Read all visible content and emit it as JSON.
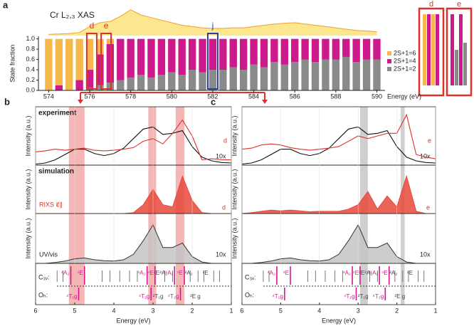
{
  "chart_data": [
    {
      "type": "area",
      "panel_label": "a",
      "title": "Cr L₂,₃ XAS",
      "color": "#fbe27a",
      "line_color": "#f0a030",
      "x": [
        574,
        574.5,
        575,
        575.5,
        576,
        576.5,
        577,
        577.5,
        578,
        578.5,
        579,
        579.5,
        580,
        580.5,
        581,
        581.5,
        582,
        582.5,
        583,
        583.5,
        584,
        584.5,
        585,
        585.5,
        586,
        586.5,
        587,
        587.5,
        588,
        588.5,
        589,
        589.5,
        590
      ],
      "values": [
        0.05,
        0.06,
        0.08,
        0.12,
        0.35,
        0.5,
        0.55,
        0.75,
        1.0,
        0.8,
        0.7,
        0.6,
        0.5,
        0.4,
        0.35,
        0.3,
        0.28,
        0.28,
        0.3,
        0.3,
        0.35,
        0.4,
        0.45,
        0.48,
        0.5,
        0.45,
        0.4,
        0.35,
        0.3,
        0.25,
        0.2,
        0.18,
        0.15
      ],
      "xlim": [
        573.5,
        590.4
      ],
      "ylim": [
        0,
        1.05
      ]
    },
    {
      "type": "bar",
      "stacked": true,
      "ylabel": "State fraction",
      "xlabel": "Energy (eV)",
      "x": [
        574,
        574.5,
        575,
        575.5,
        576,
        576.5,
        577,
        577.5,
        578,
        578.5,
        579,
        579.5,
        580,
        580.5,
        581,
        581.5,
        582,
        582.5,
        583,
        583.5,
        584,
        584.5,
        585,
        585.5,
        586,
        586.5,
        587,
        587.5,
        588,
        588.5,
        589,
        589.5,
        590
      ],
      "series": [
        {
          "name": "2S+1=2",
          "color": "#8a8a8a",
          "values": [
            0,
            0,
            0,
            0,
            0.05,
            0.1,
            0.15,
            0.2,
            0.25,
            0.3,
            0.25,
            0.3,
            0.35,
            0.3,
            0.4,
            0.35,
            0.4,
            0.4,
            0.45,
            0.4,
            0.5,
            0.45,
            0.55,
            0.5,
            0.55,
            0.6,
            0.55,
            0.6,
            0.6,
            0.65,
            0.55,
            0.6,
            0.6
          ]
        },
        {
          "name": "2S+1=4",
          "color": "#cc1a8c",
          "values": [
            0,
            0.1,
            0,
            0.2,
            0.35,
            0.6,
            0.75,
            0.8,
            0.75,
            0.7,
            0.75,
            0.7,
            0.65,
            0.7,
            0.6,
            0.65,
            0.6,
            0.6,
            0.55,
            0.6,
            0.5,
            0.55,
            0.45,
            0.5,
            0.45,
            0.4,
            0.45,
            0.4,
            0.4,
            0.35,
            0.45,
            0.4,
            0.4
          ]
        },
        {
          "name": "2S+1=6",
          "color": "#f7b84b",
          "values": [
            1,
            0.9,
            1,
            0.8,
            0.6,
            0.3,
            0.1,
            0,
            0,
            0,
            0,
            0,
            0,
            0,
            0,
            0,
            0,
            0,
            0,
            0,
            0,
            0,
            0,
            0,
            0,
            0,
            0,
            0,
            0,
            0,
            0,
            0,
            0
          ]
        }
      ],
      "xlim": [
        573.5,
        590.4
      ],
      "ylim": [
        0,
        1.05
      ],
      "xticks": [
        574,
        576,
        578,
        580,
        582,
        584,
        586,
        588,
        590
      ],
      "yticks": [
        {
          "value": 0,
          "label": "0.0"
        },
        {
          "value": 0.2,
          "label": "0.2"
        },
        {
          "value": 0.4,
          "label": "0.4"
        },
        {
          "value": 0.6,
          "label": "0.6"
        },
        {
          "value": 0.8,
          "label": "0.8"
        },
        {
          "value": 1.0,
          "label": "1.0"
        }
      ],
      "boxes": [
        {
          "label": "d",
          "x": 576.1,
          "color": "#d9342b"
        },
        {
          "label": "e",
          "x": 576.8,
          "color": "#d9342b"
        },
        {
          "label": "j",
          "x": 582,
          "color": "#2a3f9e"
        }
      ]
    },
    {
      "type": "line",
      "panel_label": "b",
      "label": "experiment",
      "ylabel": "Intensity (a.u.)",
      "note": "10x",
      "x": [
        6,
        5.75,
        5.5,
        5.25,
        5,
        4.75,
        4.5,
        4.25,
        4,
        3.75,
        3.5,
        3.25,
        3,
        2.75,
        2.5,
        2.25,
        2,
        1.75,
        1.5,
        1.25,
        1
      ],
      "series": [
        {
          "color": "#111111",
          "values": [
            0.02,
            0.04,
            0.1,
            0.2,
            0.3,
            0.3,
            0.22,
            0.18,
            0.22,
            0.32,
            0.5,
            0.68,
            0.72,
            0.58,
            0.6,
            0.65,
            0.35,
            0.15,
            0.08,
            0.05,
            0.04
          ]
        },
        {
          "name": "d",
          "color": "#d9342b",
          "values": [
            0.25,
            0.27,
            0.3,
            0.28,
            0.3,
            0.32,
            0.28,
            0.27,
            0.28,
            0.3,
            0.33,
            0.45,
            0.5,
            0.4,
            0.6,
            0.85,
            0.55,
            0.1,
            0.12,
            0.1,
            0.1
          ]
        }
      ],
      "xlim": [
        6,
        1
      ],
      "ylim": [
        0,
        1.1
      ],
      "highlights": [
        [
          5.15,
          4.75
        ],
        [
          3.12,
          2.92
        ],
        [
          2.42,
          2.2
        ]
      ],
      "highlight_color": "#ef8f8f"
    },
    {
      "type": "area",
      "label": "simulation",
      "ylabel": "Intensity (a.u.)",
      "end_label": "d",
      "x": [
        6,
        5.75,
        5.5,
        5.25,
        5,
        4.75,
        4.5,
        4.25,
        4,
        3.75,
        3.5,
        3.25,
        3,
        2.75,
        2.5,
        2.25,
        2,
        1.75,
        1.5,
        1.25,
        1
      ],
      "series": [
        {
          "name": "RIXS ε⃗∥",
          "color": "#e8493b",
          "values": [
            0,
            0,
            0,
            0,
            0,
            0,
            0,
            0,
            0,
            0,
            0.02,
            0.2,
            0.55,
            0.2,
            0.15,
            0.85,
            0.3,
            0.02,
            0,
            0,
            0
          ]
        }
      ],
      "xlim": [
        6,
        1
      ],
      "ylim": [
        0,
        1.1
      ]
    },
    {
      "type": "area",
      "ylabel": "Intensity (a.u.)",
      "note": "10x",
      "x": [
        6,
        5.75,
        5.5,
        5.25,
        5,
        4.75,
        4.5,
        4.25,
        4,
        3.75,
        3.5,
        3.25,
        3,
        2.75,
        2.5,
        2.25,
        2,
        1.75,
        1.5,
        1.25,
        1
      ],
      "series": [
        {
          "name": "UV/vis",
          "color": "#c4c4c4",
          "values": [
            0,
            0,
            0.02,
            0.05,
            0.1,
            0.12,
            0.08,
            0.06,
            0.05,
            0.08,
            0.2,
            0.5,
            0.85,
            0.35,
            0.35,
            0.45,
            0.15,
            0.03,
            0,
            0,
            0
          ]
        }
      ],
      "xlim": [
        6,
        1
      ],
      "ylim": [
        0,
        1.1
      ]
    },
    {
      "type": "levels",
      "xlabel": "Energy (eV)",
      "rows": [
        "C₃ᵥ:",
        "Oₕ:"
      ],
      "terms": [
        {
          "label": "⁴A₂",
          "x": 5.1,
          "row": 0,
          "color": "#d6168f"
        },
        {
          "label": "⁴E",
          "x": 4.75,
          "row": 0,
          "color": "#d6168f"
        },
        {
          "label": "⁴A₂",
          "x": 3.15,
          "row": 0,
          "color": "#d6168f"
        },
        {
          "label": "⁴E",
          "x": 2.95,
          "row": 0,
          "color": "#d6168f"
        },
        {
          "label": "²E",
          "x": 2.8,
          "row": 0,
          "color": "#444444"
        },
        {
          "label": "²A₁",
          "x": 2.6,
          "row": 0,
          "color": "#444444"
        },
        {
          "label": "⁴A₁",
          "x": 2.45,
          "row": 0,
          "color": "#d6168f"
        },
        {
          "label": "⁴E",
          "x": 2.2,
          "row": 0,
          "color": "#d6168f"
        },
        {
          "label": "²A₂",
          "x": 1.95,
          "row": 0,
          "color": "#444444"
        },
        {
          "label": "²E",
          "x": 1.55,
          "row": 0,
          "color": "#444444"
        },
        {
          "label": "⁴T₁g",
          "x": 4.9,
          "row": 1,
          "color": "#d6168f"
        },
        {
          "label": "⁴T₁g",
          "x": 3.05,
          "row": 1,
          "color": "#d6168f"
        },
        {
          "label": "²T₁g",
          "x": 2.7,
          "row": 1,
          "color": "#444444"
        },
        {
          "label": "⁴T₂g",
          "x": 2.3,
          "row": 1,
          "color": "#d6168f"
        },
        {
          "label": "²E g",
          "x": 1.75,
          "row": 1,
          "color": "#444444"
        }
      ],
      "sticks": [
        5.45,
        5.3,
        4.3,
        4.1,
        3.85,
        3.6,
        3.4,
        2.7,
        2.5,
        2.05,
        1.85,
        1.7,
        1.45,
        1.3
      ],
      "xlim": [
        6,
        1
      ],
      "xticks": [
        6,
        5,
        4,
        3,
        2,
        1
      ]
    },
    {
      "type": "line",
      "panel_label": "c",
      "ylabel": "Intensity (a.u.)",
      "note": "10x",
      "x": [
        6,
        5.75,
        5.5,
        5.25,
        5,
        4.75,
        4.5,
        4.25,
        4,
        3.75,
        3.5,
        3.25,
        3,
        2.75,
        2.5,
        2.25,
        2,
        1.75,
        1.5,
        1.25,
        1
      ],
      "series": [
        {
          "color": "#111111",
          "values": [
            0.02,
            0.04,
            0.1,
            0.2,
            0.3,
            0.3,
            0.22,
            0.18,
            0.22,
            0.32,
            0.5,
            0.68,
            0.72,
            0.58,
            0.6,
            0.65,
            0.35,
            0.15,
            0.08,
            0.05,
            0.04
          ]
        },
        {
          "name": "e",
          "color": "#d9342b",
          "values": [
            0.3,
            0.32,
            0.38,
            0.4,
            0.38,
            0.33,
            0.3,
            0.28,
            0.3,
            0.32,
            0.35,
            0.45,
            0.55,
            0.5,
            0.55,
            0.6,
            0.6,
            0.95,
            0.2,
            0.15,
            0.12
          ]
        }
      ],
      "xlim": [
        6,
        1
      ],
      "ylim": [
        0,
        1.1
      ],
      "highlights": [
        [
          2.95,
          2.75
        ],
        [
          1.9,
          1.8
        ]
      ],
      "highlight_color": "#b5b5b5"
    },
    {
      "type": "area",
      "ylabel": "Intensity (a.u.)",
      "end_label": "e",
      "x": [
        6,
        5.75,
        5.5,
        5.25,
        5,
        4.75,
        4.5,
        4.25,
        4,
        3.75,
        3.5,
        3.25,
        3,
        2.75,
        2.5,
        2.25,
        2,
        1.75,
        1.5,
        1.25,
        1
      ],
      "series": [
        {
          "color": "#e8493b",
          "values": [
            0,
            0.02,
            0.05,
            0.08,
            0.06,
            0.08,
            0.06,
            0.04,
            0.05,
            0.05,
            0.05,
            0.1,
            0.2,
            0.5,
            0.1,
            0.4,
            0.15,
            0.85,
            0.05,
            0,
            0
          ]
        }
      ],
      "xlim": [
        6,
        1
      ],
      "ylim": [
        0,
        1.1
      ]
    },
    {
      "type": "area",
      "ylabel": "Intensity (a.u.)",
      "note": "10x",
      "x": [
        6,
        5.75,
        5.5,
        5.25,
        5,
        4.75,
        4.5,
        4.25,
        4,
        3.75,
        3.5,
        3.25,
        3,
        2.75,
        2.5,
        2.25,
        2,
        1.75,
        1.5,
        1.25,
        1
      ],
      "series": [
        {
          "color": "#c4c4c4",
          "values": [
            0,
            0,
            0.02,
            0.05,
            0.1,
            0.12,
            0.08,
            0.06,
            0.05,
            0.08,
            0.2,
            0.5,
            0.85,
            0.35,
            0.35,
            0.45,
            0.15,
            0.03,
            0,
            0,
            0
          ]
        }
      ],
      "xlim": [
        6,
        1
      ],
      "ylim": [
        0,
        1.1
      ]
    },
    {
      "type": "levels",
      "xlabel": "Energy (eV)",
      "rows": [
        "C₃ᵥ:",
        "Oₕ:"
      ],
      "terms": [
        {
          "label": "⁴A₂",
          "x": 5.1,
          "row": 0,
          "color": "#d6168f"
        },
        {
          "label": "⁴E",
          "x": 4.75,
          "row": 0,
          "color": "#d6168f"
        },
        {
          "label": "⁴A₂",
          "x": 3.15,
          "row": 0,
          "color": "#d6168f"
        },
        {
          "label": "⁴E",
          "x": 2.95,
          "row": 0,
          "color": "#d6168f"
        },
        {
          "label": "²E",
          "x": 2.8,
          "row": 0,
          "color": "#444444"
        },
        {
          "label": "²A₁",
          "x": 2.6,
          "row": 0,
          "color": "#444444"
        },
        {
          "label": "⁴A₁",
          "x": 2.45,
          "row": 0,
          "color": "#d6168f"
        },
        {
          "label": "⁴E",
          "x": 2.2,
          "row": 0,
          "color": "#d6168f"
        },
        {
          "label": "²A₂",
          "x": 1.95,
          "row": 0,
          "color": "#444444"
        },
        {
          "label": "²E",
          "x": 1.55,
          "row": 0,
          "color": "#444444"
        },
        {
          "label": "⁴T₁g",
          "x": 4.9,
          "row": 1,
          "color": "#d6168f"
        },
        {
          "label": "⁴T₁g",
          "x": 3.05,
          "row": 1,
          "color": "#d6168f"
        },
        {
          "label": "²T₁g",
          "x": 2.7,
          "row": 1,
          "color": "#444444"
        },
        {
          "label": "⁴T₂g",
          "x": 2.3,
          "row": 1,
          "color": "#d6168f"
        },
        {
          "label": "²E g",
          "x": 1.75,
          "row": 1,
          "color": "#444444"
        }
      ],
      "sticks": [
        5.45,
        5.3,
        4.3,
        4.1,
        3.85,
        3.6,
        3.4,
        2.7,
        2.5,
        2.05,
        1.85,
        1.7,
        1.45,
        1.3
      ],
      "xlim": [
        6,
        1
      ],
      "xticks": [
        6,
        5,
        4,
        3,
        2,
        1
      ]
    }
  ]
}
